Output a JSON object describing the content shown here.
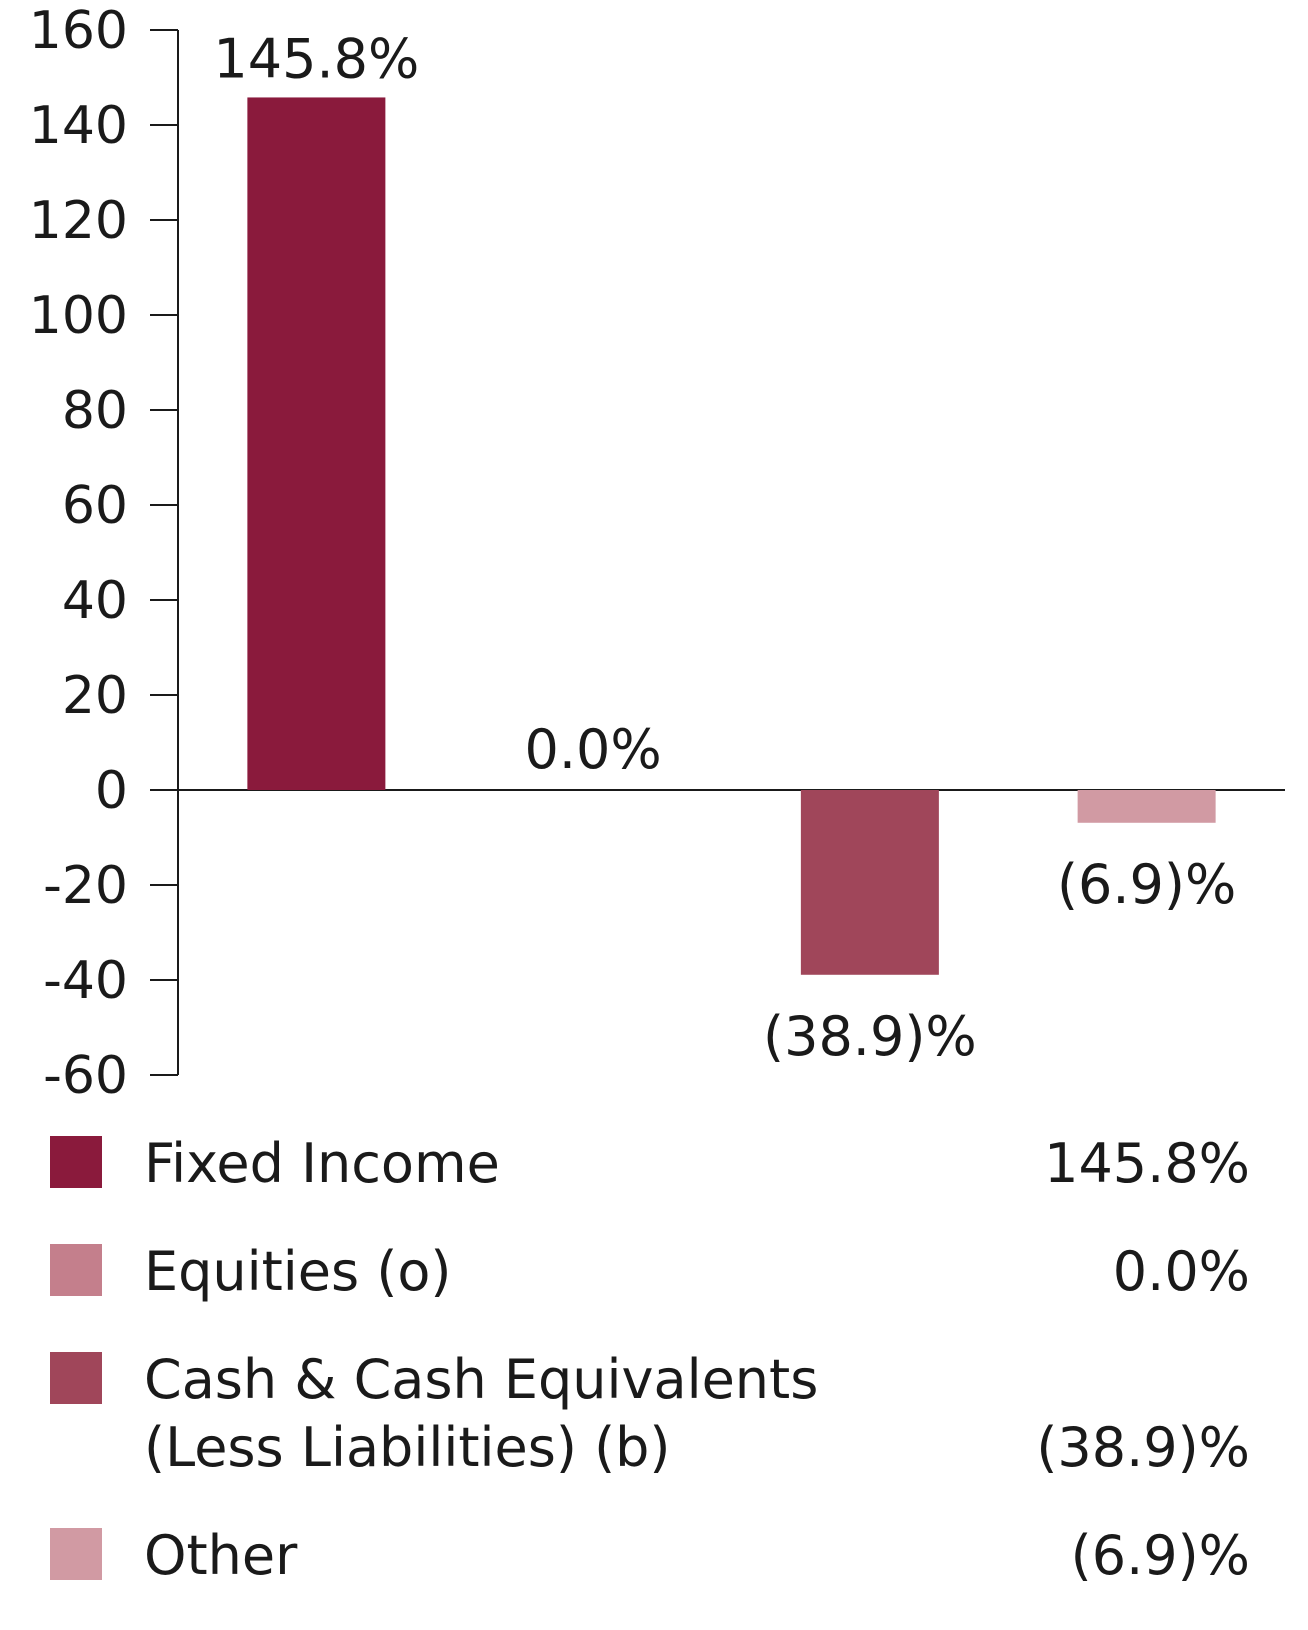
{
  "chart_data": {
    "type": "bar",
    "title": "",
    "xlabel": "",
    "ylabel": "",
    "ylim": [
      -60,
      160
    ],
    "yticks": [
      160,
      140,
      120,
      100,
      80,
      60,
      40,
      20,
      0,
      -20,
      -40,
      -60
    ],
    "categories": [
      "Fixed Income",
      "Equities (o)",
      "Cash & Cash Equivalents (Less Liabilities) (b)",
      "Other"
    ],
    "values": [
      145.8,
      0.0,
      -38.9,
      -6.9
    ],
    "data_labels": [
      "145.8%",
      "0.0%",
      "(38.9)%",
      "(6.9)%"
    ],
    "colors": [
      "#8a1a3c",
      "#c47f8c",
      "#a0465a",
      "#d19aa3"
    ],
    "grid": false,
    "legend_position": "bottom"
  },
  "legend": {
    "items": [
      {
        "label_lines": [
          "Fixed Income"
        ],
        "value": "145.8%",
        "color": "#8a1a3c"
      },
      {
        "label_lines": [
          "Equities (o)"
        ],
        "value": "0.0%",
        "color": "#c47f8c"
      },
      {
        "label_lines": [
          "Cash & Cash Equivalents",
          "(Less Liabilities) (b)"
        ],
        "value": "(38.9)%",
        "color": "#a0465a"
      },
      {
        "label_lines": [
          "Other"
        ],
        "value": "(6.9)%",
        "color": "#d19aa3"
      }
    ]
  }
}
